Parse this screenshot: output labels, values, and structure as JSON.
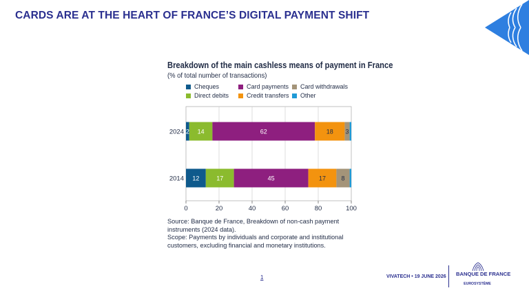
{
  "slide": {
    "title": "CARDS ARE AT THE HEART OF FRANCE’S DIGITAL PAYMENT SHIFT",
    "page_number": "1",
    "footer_date": "VIVATECH • 19 JUNE 2026",
    "logo_name": "BANQUE DE FRANCE",
    "logo_sub": "EUROSYSTÈME"
  },
  "source_lines": [
    "Source: Banque de France, Breakdown of non-cash payment instruments (2024 data).",
    "Scope: Payments by individuals and corporate and institutional customers, excluding financial and monetary institutions."
  ],
  "colors": {
    "title": "#2a2f8f",
    "text": "#1f2a44",
    "logo_blue": "#2e7fe0"
  },
  "chart_data": {
    "type": "bar",
    "orientation": "horizontal",
    "stacked": true,
    "title": "Breakdown of the main cashless means of payment in France",
    "subtitle": "(% of total number of transactions)",
    "categories": [
      "2024",
      "2014"
    ],
    "series": [
      {
        "name": "Cheques",
        "color": "#0f5a8c",
        "values": [
          2,
          12
        ],
        "labels": [
          "2",
          "12"
        ]
      },
      {
        "name": "Direct debits",
        "color": "#8bbb2e",
        "values": [
          14,
          17
        ],
        "labels": [
          "14",
          "17"
        ]
      },
      {
        "name": "Card payments",
        "color": "#8e1f7f",
        "values": [
          62,
          45
        ],
        "labels": [
          "62",
          "45"
        ]
      },
      {
        "name": "Credit transfers",
        "color": "#f3930f",
        "values": [
          18,
          17
        ],
        "labels": [
          "18",
          "17"
        ]
      },
      {
        "name": "Card withdrawals",
        "color": "#a49479",
        "values": [
          3,
          8
        ],
        "labels": [
          "3",
          "8"
        ]
      },
      {
        "name": "Other",
        "color": "#1f9ad6",
        "values": [
          1,
          1
        ],
        "labels": [
          "",
          ""
        ]
      }
    ],
    "legend": {
      "placement": "top",
      "order": [
        "Cheques",
        "Card payments",
        "Card withdrawals",
        "Direct debits",
        "Credit transfers",
        "Other"
      ]
    },
    "xlim": [
      0,
      100
    ],
    "xticks": [
      "0",
      "20",
      "40",
      "60",
      "80",
      "100"
    ],
    "grid": true,
    "xlabel": "",
    "ylabel": ""
  }
}
